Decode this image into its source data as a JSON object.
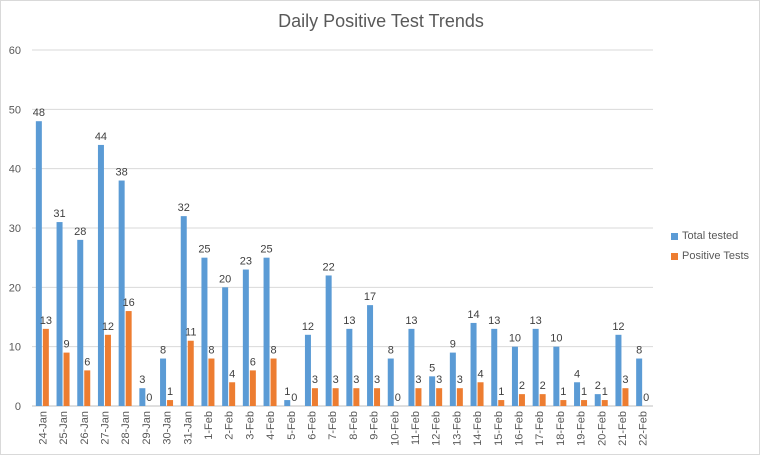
{
  "chart_data": {
    "type": "bar",
    "title": "Daily Positive Test Trends",
    "categories": [
      "24-Jan",
      "25-Jan",
      "26-Jan",
      "27-Jan",
      "28-Jan",
      "29-Jan",
      "30-Jan",
      "31-Jan",
      "1-Feb",
      "2-Feb",
      "3-Feb",
      "4-Feb",
      "5-Feb",
      "6-Feb",
      "7-Feb",
      "8-Feb",
      "9-Feb",
      "10-Feb",
      "11-Feb",
      "12-Feb",
      "13-Feb",
      "14-Feb",
      "15-Feb",
      "16-Feb",
      "17-Feb",
      "18-Feb",
      "19-Feb",
      "20-Feb",
      "21-Feb",
      "22-Feb"
    ],
    "series": [
      {
        "name": "Total tested",
        "color": "#5b9bd5",
        "values": [
          48,
          31,
          28,
          44,
          38,
          3,
          8,
          32,
          25,
          20,
          23,
          25,
          1,
          12,
          22,
          13,
          17,
          8,
          13,
          5,
          9,
          14,
          13,
          10,
          13,
          10,
          4,
          2,
          12,
          8
        ]
      },
      {
        "name": "Positive Tests",
        "color": "#ed7d31",
        "values": [
          13,
          9,
          6,
          12,
          16,
          0,
          1,
          11,
          8,
          4,
          6,
          8,
          0,
          3,
          3,
          3,
          3,
          0,
          3,
          3,
          3,
          4,
          1,
          2,
          2,
          1,
          1,
          1,
          3,
          0
        ]
      }
    ],
    "ylim": [
      0,
      60
    ],
    "yticks": [
      0,
      10,
      20,
      30,
      40,
      50,
      60
    ],
    "grid": true,
    "legend": "right",
    "xlabel": "",
    "ylabel": ""
  }
}
